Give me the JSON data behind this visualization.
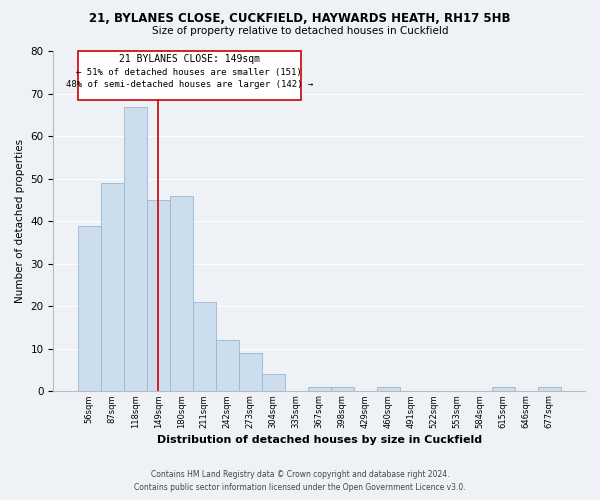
{
  "title_line1": "21, BYLANES CLOSE, CUCKFIELD, HAYWARDS HEATH, RH17 5HB",
  "title_line2": "Size of property relative to detached houses in Cuckfield",
  "xlabel": "Distribution of detached houses by size in Cuckfield",
  "ylabel": "Number of detached properties",
  "bar_labels": [
    "56sqm",
    "87sqm",
    "118sqm",
    "149sqm",
    "180sqm",
    "211sqm",
    "242sqm",
    "273sqm",
    "304sqm",
    "335sqm",
    "367sqm",
    "398sqm",
    "429sqm",
    "460sqm",
    "491sqm",
    "522sqm",
    "553sqm",
    "584sqm",
    "615sqm",
    "646sqm",
    "677sqm"
  ],
  "bar_values": [
    39,
    49,
    67,
    45,
    46,
    21,
    12,
    9,
    4,
    0,
    1,
    1,
    0,
    1,
    0,
    0,
    0,
    0,
    1,
    0,
    1
  ],
  "bar_color": "#ccdded",
  "bar_edge_color": "#9ab8d0",
  "vline_x": 3,
  "vline_color": "#cc0000",
  "ylim": [
    0,
    80
  ],
  "yticks": [
    0,
    10,
    20,
    30,
    40,
    50,
    60,
    70,
    80
  ],
  "annotation_text_line1": "21 BYLANES CLOSE: 149sqm",
  "annotation_text_line2": "← 51% of detached houses are smaller (151)",
  "annotation_text_line3": "48% of semi-detached houses are larger (142) →",
  "annotation_box_color": "#ffffff",
  "annotation_box_edge": "#cc0000",
  "footer_line1": "Contains HM Land Registry data © Crown copyright and database right 2024.",
  "footer_line2": "Contains public sector information licensed under the Open Government Licence v3.0.",
  "background_color": "#eef2f7",
  "grid_color": "#ffffff",
  "title1_fontsize": 8.5,
  "title2_fontsize": 7.5,
  "ylabel_fontsize": 7.5,
  "xlabel_fontsize": 8.0,
  "ytick_fontsize": 7.5,
  "xtick_fontsize": 6.0,
  "ann_fontsize1": 7.0,
  "ann_fontsize2": 6.5,
  "footer_fontsize": 5.5
}
